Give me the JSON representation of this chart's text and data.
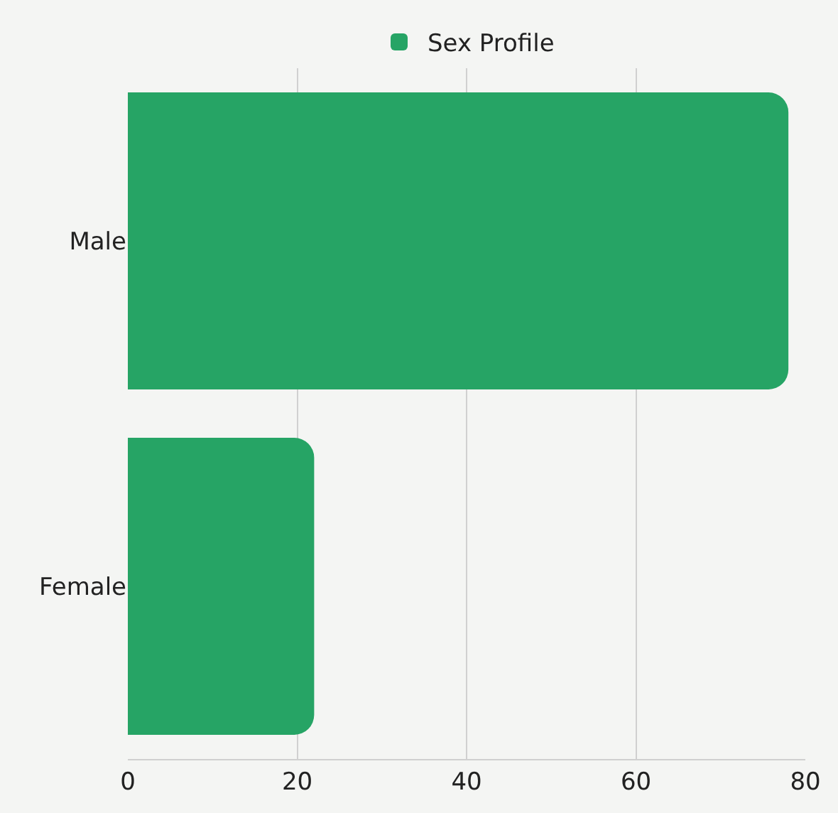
{
  "chart_data": {
    "type": "bar",
    "orientation": "horizontal",
    "categories": [
      "Male",
      "Female"
    ],
    "series": [
      {
        "name": "Sex Profile",
        "color": "#26a465",
        "values": [
          78,
          22
        ]
      }
    ],
    "xlim": [
      0,
      80
    ],
    "xticks": [
      0,
      20,
      40,
      60,
      80
    ],
    "grid": "x",
    "legend": "top"
  }
}
